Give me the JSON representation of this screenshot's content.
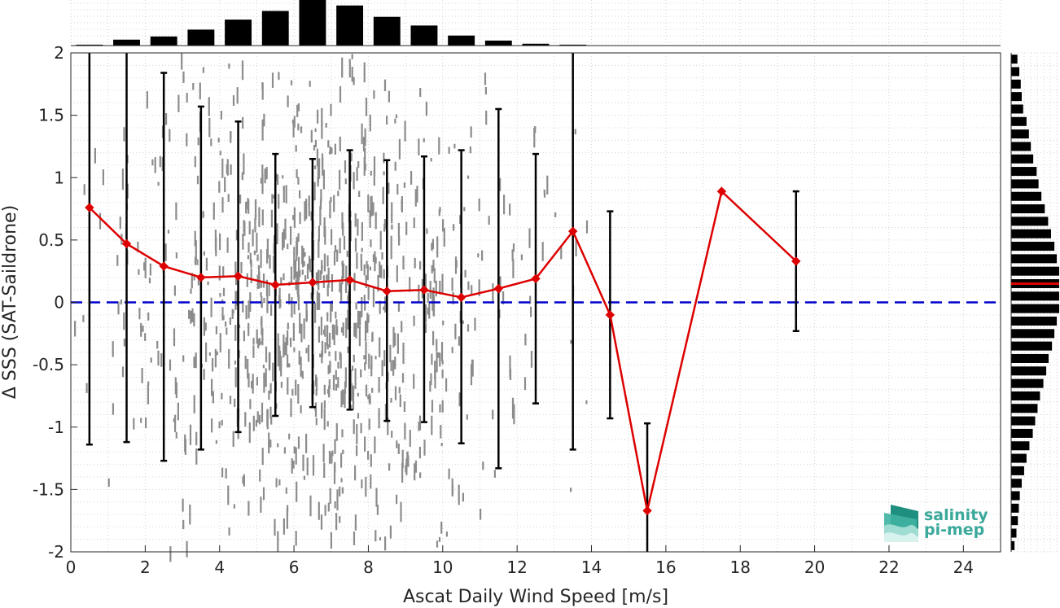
{
  "chart_data": {
    "type": "scatter",
    "xlabel": "Ascat Daily Wind Speed [m/s]",
    "ylabel": "Δ SSS (SAT-Saildrone)",
    "xlim": [
      0,
      25
    ],
    "ylim": [
      -2,
      2
    ],
    "xticks": [
      0,
      2,
      4,
      6,
      8,
      10,
      12,
      14,
      16,
      18,
      20,
      22,
      24
    ],
    "yticks": [
      -2,
      -1.5,
      -1,
      -0.5,
      0,
      0.5,
      1,
      1.5,
      2
    ],
    "grid": true,
    "reference_line": {
      "y": 0,
      "color": "#0000cc",
      "style": "dashed"
    },
    "scatter_color": "#808080",
    "series": [
      {
        "x": [
          0.5,
          1.5,
          2.5,
          3.5,
          4.5,
          5.5,
          6.5,
          7.5,
          8.5,
          9.5,
          10.5,
          11.5,
          12.5,
          13.5,
          14.5,
          15.5,
          17.5,
          19.5
        ],
        "mean": [
          0.76,
          0.47,
          0.29,
          0.2,
          0.21,
          0.14,
          0.16,
          0.18,
          0.09,
          0.1,
          0.04,
          0.11,
          0.19,
          0.57,
          -0.1,
          -1.67,
          0.89,
          0.33
        ],
        "err_upper": [
          2.0,
          2.0,
          1.84,
          1.57,
          1.45,
          1.19,
          1.15,
          1.22,
          1.14,
          1.17,
          1.22,
          1.55,
          1.19,
          2.0,
          0.73,
          -0.97,
          null,
          0.89
        ],
        "err_lower": [
          -1.14,
          -1.12,
          -1.27,
          -1.18,
          -1.04,
          -0.91,
          -0.84,
          -0.86,
          -0.95,
          -0.96,
          -1.13,
          -1.33,
          -0.81,
          -1.18,
          -0.93,
          -2.0,
          null,
          -0.23
        ],
        "color": "#dd0000",
        "marker": "diamond"
      }
    ],
    "top_histogram": {
      "bin_centers": [
        0.5,
        1.5,
        2.5,
        3.5,
        4.5,
        5.5,
        6.5,
        7.5,
        8.5,
        9.5,
        10.5,
        11.5,
        12.5,
        13.5
      ],
      "relative_heights": [
        0.02,
        0.13,
        0.2,
        0.35,
        0.57,
        0.76,
        1.0,
        0.88,
        0.63,
        0.44,
        0.22,
        0.11,
        0.04,
        0.02
      ]
    },
    "right_histogram": {
      "bin_centers": [
        1.95,
        1.85,
        1.75,
        1.65,
        1.55,
        1.45,
        1.35,
        1.25,
        1.15,
        1.05,
        0.95,
        0.85,
        0.75,
        0.65,
        0.55,
        0.45,
        0.35,
        0.25,
        0.15,
        0.05,
        -0.05,
        -0.15,
        -0.25,
        -0.35,
        -0.45,
        -0.55,
        -0.65,
        -0.75,
        -0.85,
        -0.95,
        -1.05,
        -1.15,
        -1.25,
        -1.35,
        -1.45,
        -1.55,
        -1.65,
        -1.75,
        -1.85,
        -1.95
      ],
      "relative_widths": [
        0.13,
        0.17,
        0.2,
        0.22,
        0.25,
        0.32,
        0.37,
        0.41,
        0.46,
        0.53,
        0.57,
        0.63,
        0.7,
        0.77,
        0.83,
        0.9,
        0.95,
        1.0,
        1.0,
        1.0,
        1.0,
        0.95,
        0.9,
        0.85,
        0.78,
        0.73,
        0.67,
        0.6,
        0.55,
        0.5,
        0.45,
        0.38,
        0.32,
        0.27,
        0.22,
        0.18,
        0.16,
        0.14,
        0.11,
        0.07
      ],
      "median_marker": {
        "y": 0.15,
        "color": "#dd0000"
      }
    }
  },
  "logo": {
    "line1": "salinity",
    "line2": "pi-mep"
  }
}
